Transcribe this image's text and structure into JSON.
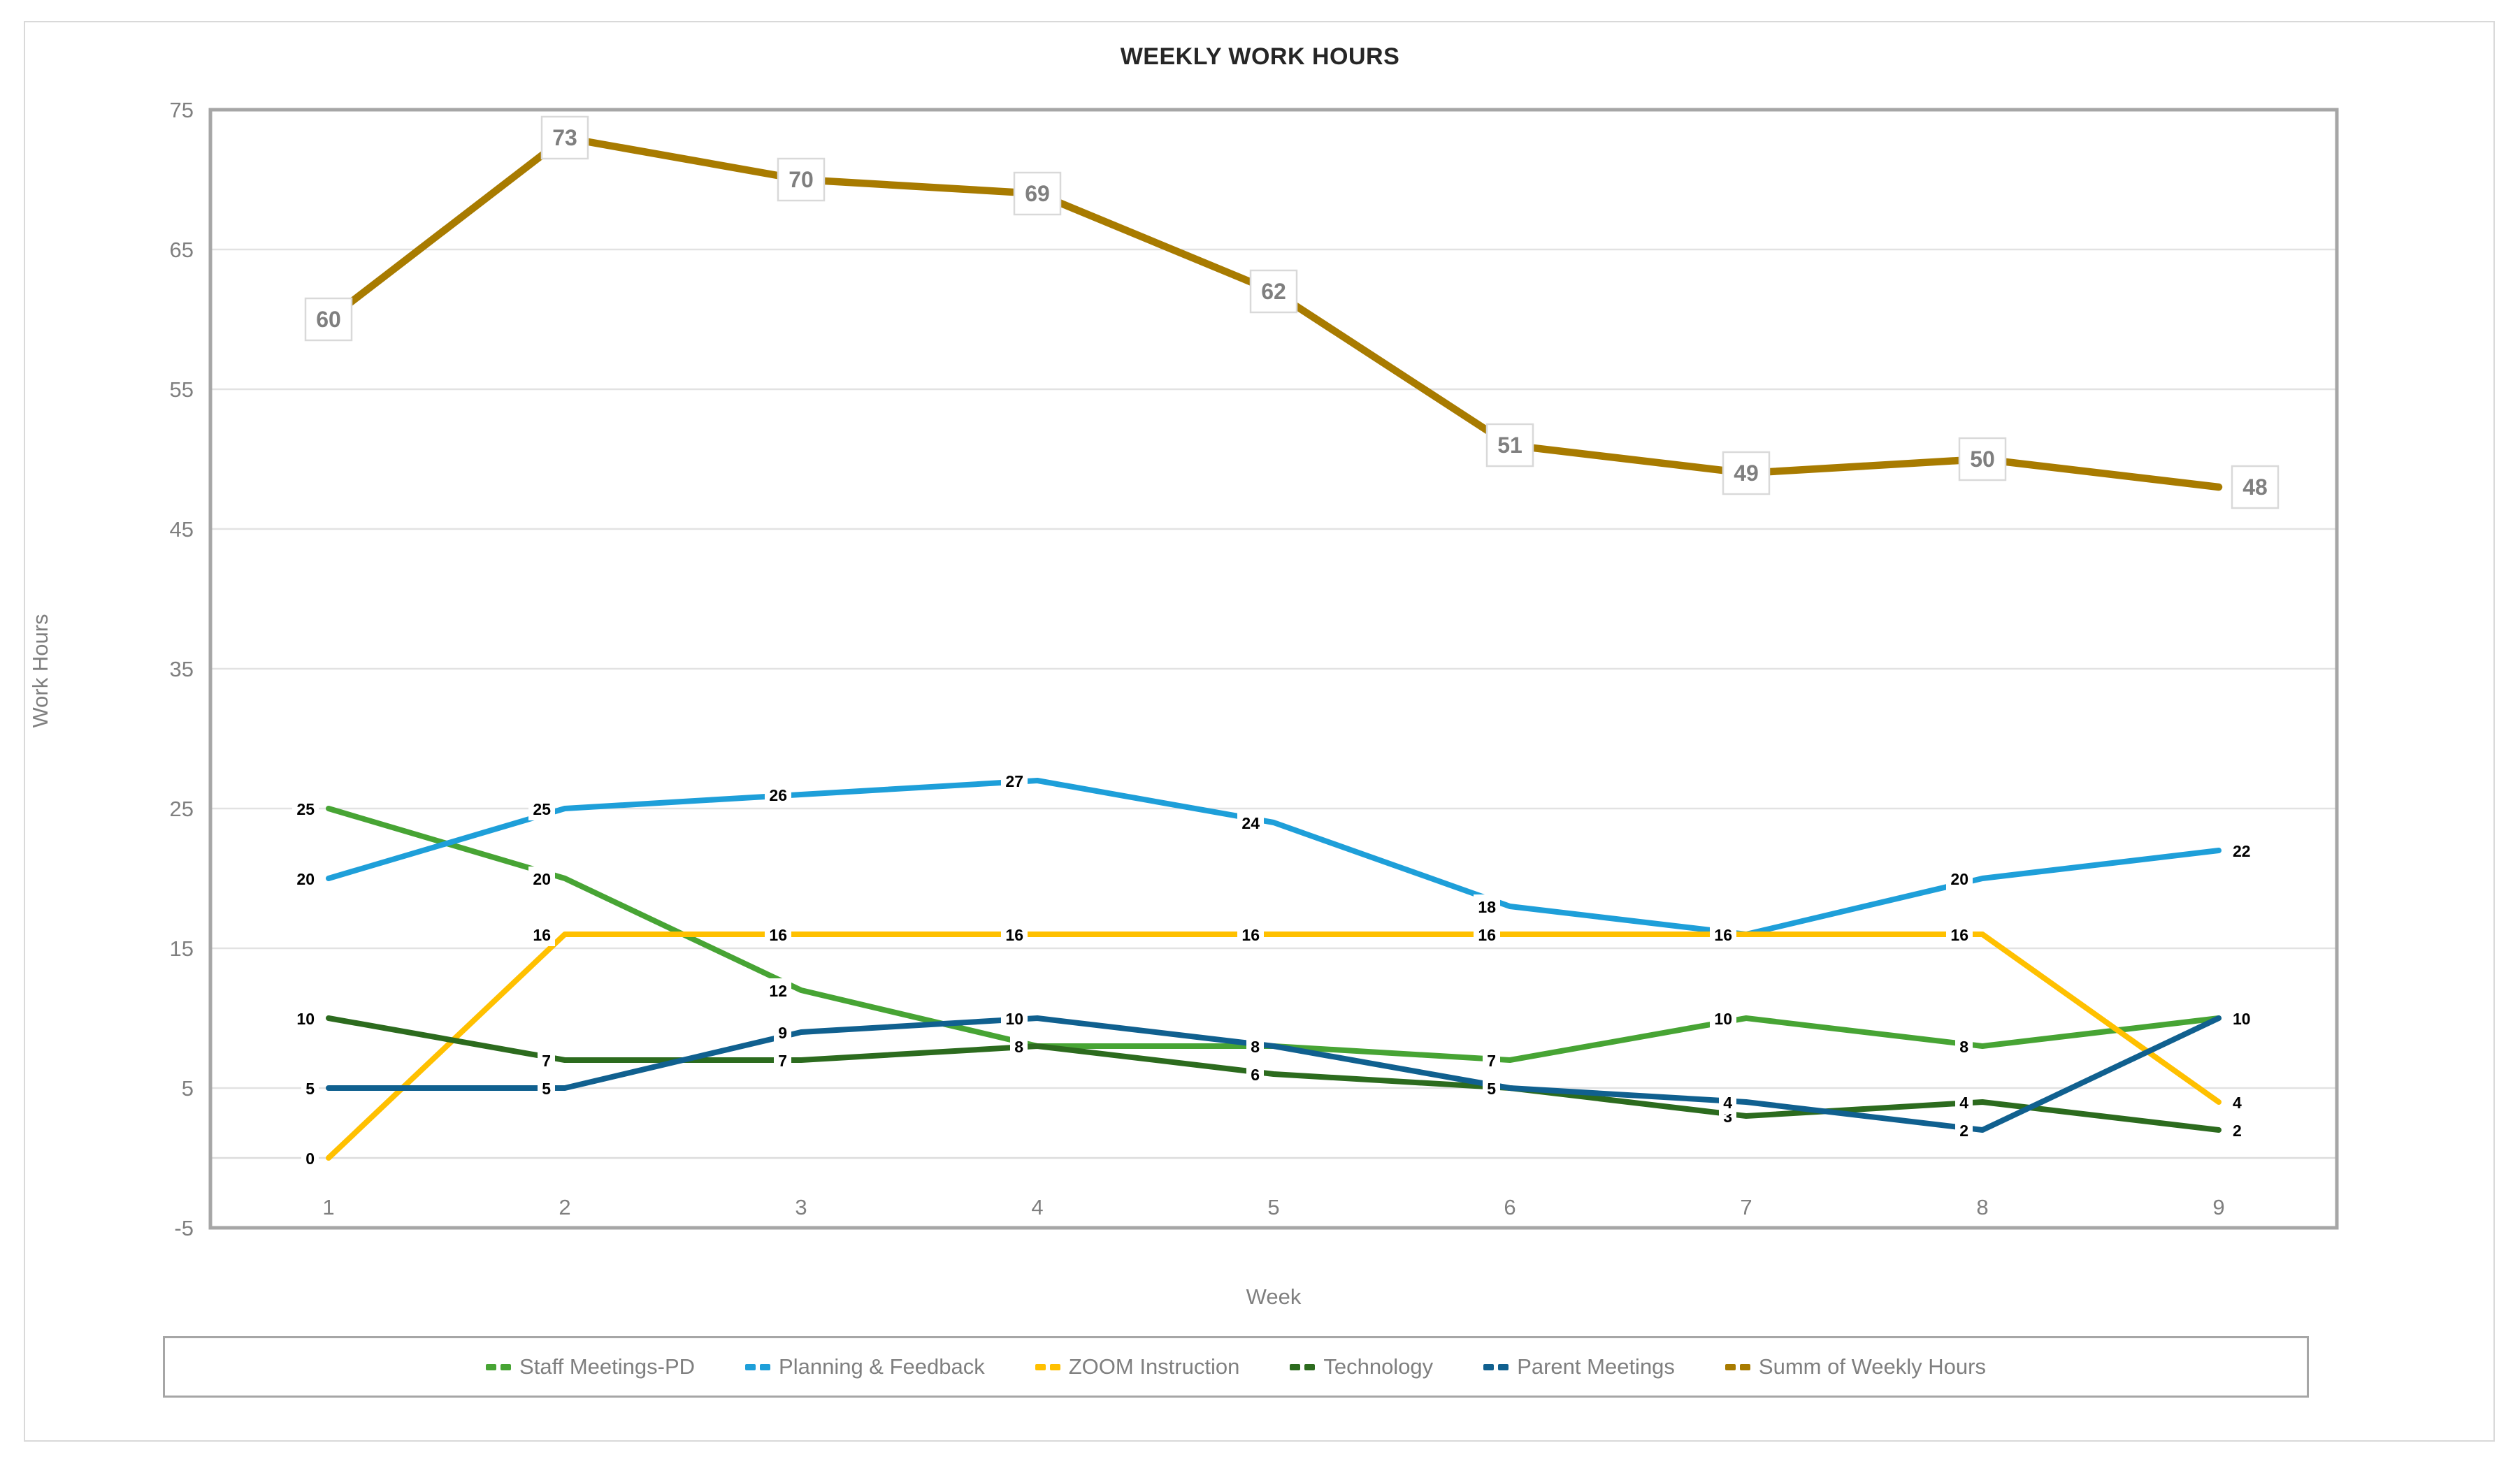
{
  "title": "WEEKLY WORK HOURS",
  "chart_data": {
    "type": "line",
    "title": "WEEKLY WORK HOURS",
    "xlabel": "Week",
    "ylabel": "Work Hours",
    "categories": [
      "1",
      "2",
      "3",
      "4",
      "5",
      "6",
      "7",
      "8",
      "9"
    ],
    "ylim": [
      -5,
      75
    ],
    "yticks": [
      75,
      65,
      55,
      45,
      35,
      25,
      15,
      5,
      -5
    ],
    "grid": true,
    "legend_position": "bottom",
    "series": [
      {
        "name": "Staff Meetings-PD",
        "color": "#47A434",
        "values": [
          25,
          20,
          12,
          8,
          8,
          7,
          10,
          8,
          10
        ]
      },
      {
        "name": "Planning & Feedback",
        "color": "#1E9FD9",
        "values": [
          20,
          25,
          26,
          27,
          24,
          18,
          16,
          20,
          22
        ]
      },
      {
        "name": "ZOOM Instruction",
        "color": "#FFC000",
        "values": [
          0,
          16,
          16,
          16,
          16,
          16,
          16,
          16,
          4
        ]
      },
      {
        "name": "Technology",
        "color": "#2C6B1E",
        "values": [
          10,
          7,
          7,
          8,
          6,
          5,
          3,
          4,
          2
        ]
      },
      {
        "name": "Parent Meetings",
        "color": "#10608F",
        "values": [
          5,
          5,
          9,
          10,
          8,
          5,
          4,
          2,
          10
        ]
      },
      {
        "name": "Summ of Weekly Hours",
        "color": "#A87B00",
        "values": [
          60,
          73,
          70,
          69,
          62,
          51,
          49,
          50,
          48
        ],
        "emphasis": true
      }
    ],
    "colors": {
      "gridline": "#E2E2E2",
      "zero_axis": "#DCDCDC",
      "plot_border": "#A6A6A6",
      "tick_text": "#7F7F7F",
      "data_label_text": "#000000",
      "sum_label_text": "#7F7F7F",
      "sum_label_border": "#D9D9D9"
    }
  }
}
